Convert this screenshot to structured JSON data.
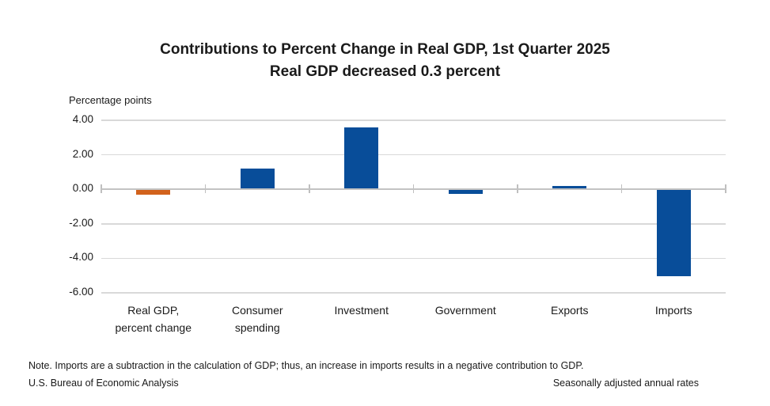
{
  "chart": {
    "title_line1": "Contributions to Percent Change in Real GDP, 1st Quarter 2025",
    "title_line2": "Real GDP decreased 0.3 percent",
    "y_axis_label": "Percentage points"
  },
  "footer": {
    "note": "Note. Imports are a subtraction in the calculation of GDP; thus, an increase in imports results in a negative contribution to GDP.",
    "source": "U.S. Bureau of Economic Analysis",
    "right_note": "Seasonally adjusted annual rates"
  },
  "colors": {
    "highlight_bar": "#d2621c",
    "default_bar": "#084d99",
    "gridline": "#d9d9d9",
    "axis": "#c3c3c3"
  },
  "chart_data": {
    "type": "bar",
    "title": "Contributions to Percent Change in Real GDP, 1st Quarter 2025",
    "subtitle": "Real GDP decreased 0.3 percent",
    "xlabel": "",
    "ylabel": "Percentage points",
    "ylim": [
      -6,
      4
    ],
    "yticks": [
      4,
      2,
      0,
      -2,
      -4,
      -6
    ],
    "ytick_labels": [
      "4.00",
      "2.00",
      "0.00",
      "-2.00",
      "-4.00",
      "-6.00"
    ],
    "grid": true,
    "legend_position": "none",
    "categories": [
      "Real GDP,\npercent change",
      "Consumer\nspending",
      "Investment",
      "Government",
      "Exports",
      "Imports"
    ],
    "values": [
      -0.3,
      1.21,
      3.6,
      -0.25,
      0.19,
      -5.03
    ],
    "bar_colors": [
      "#d2621c",
      "#084d99",
      "#084d99",
      "#084d99",
      "#084d99",
      "#084d99"
    ]
  }
}
